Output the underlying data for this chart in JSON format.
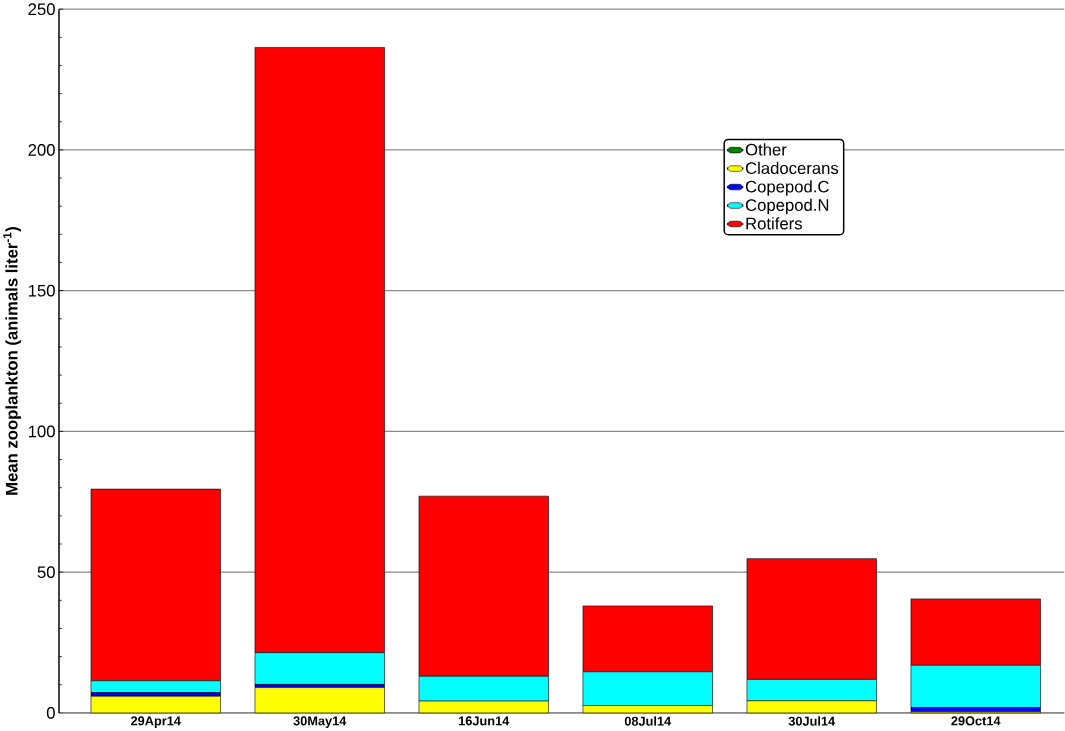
{
  "chart_data": {
    "type": "bar",
    "stacked": true,
    "ylabel": "Mean zooplankton (animals liter$^{-1}$)",
    "categories": [
      "29Apr14",
      "30May14",
      "16Jun14",
      "08Jul14",
      "30Jul14",
      "29Oct14"
    ],
    "series": [
      {
        "name": "Other",
        "color": "#008000",
        "values": [
          0,
          0,
          0,
          0,
          0,
          0
        ]
      },
      {
        "name": "Cladocerans",
        "color": "#ffff00",
        "values": [
          5.9,
          9.0,
          4.2,
          2.6,
          4.3,
          0.4
        ]
      },
      {
        "name": "Copepod.C",
        "color": "#0000ff",
        "values": [
          1.3,
          1.1,
          null,
          0,
          0,
          1.5
        ]
      },
      {
        "name": "Copepod.N",
        "color": "#00ffff",
        "values": [
          4.2,
          11.3,
          8.8,
          12,
          7.6,
          15
        ]
      },
      {
        "name": "Rotifers",
        "color": "#ff0000",
        "values": [
          68.1,
          215,
          64,
          23.4,
          42.9,
          23.6
        ]
      }
    ],
    "ylim": [
      0,
      250
    ],
    "yticks": [
      0,
      50,
      100,
      150,
      200,
      250
    ],
    "grid": "y",
    "legend": "top right"
  }
}
